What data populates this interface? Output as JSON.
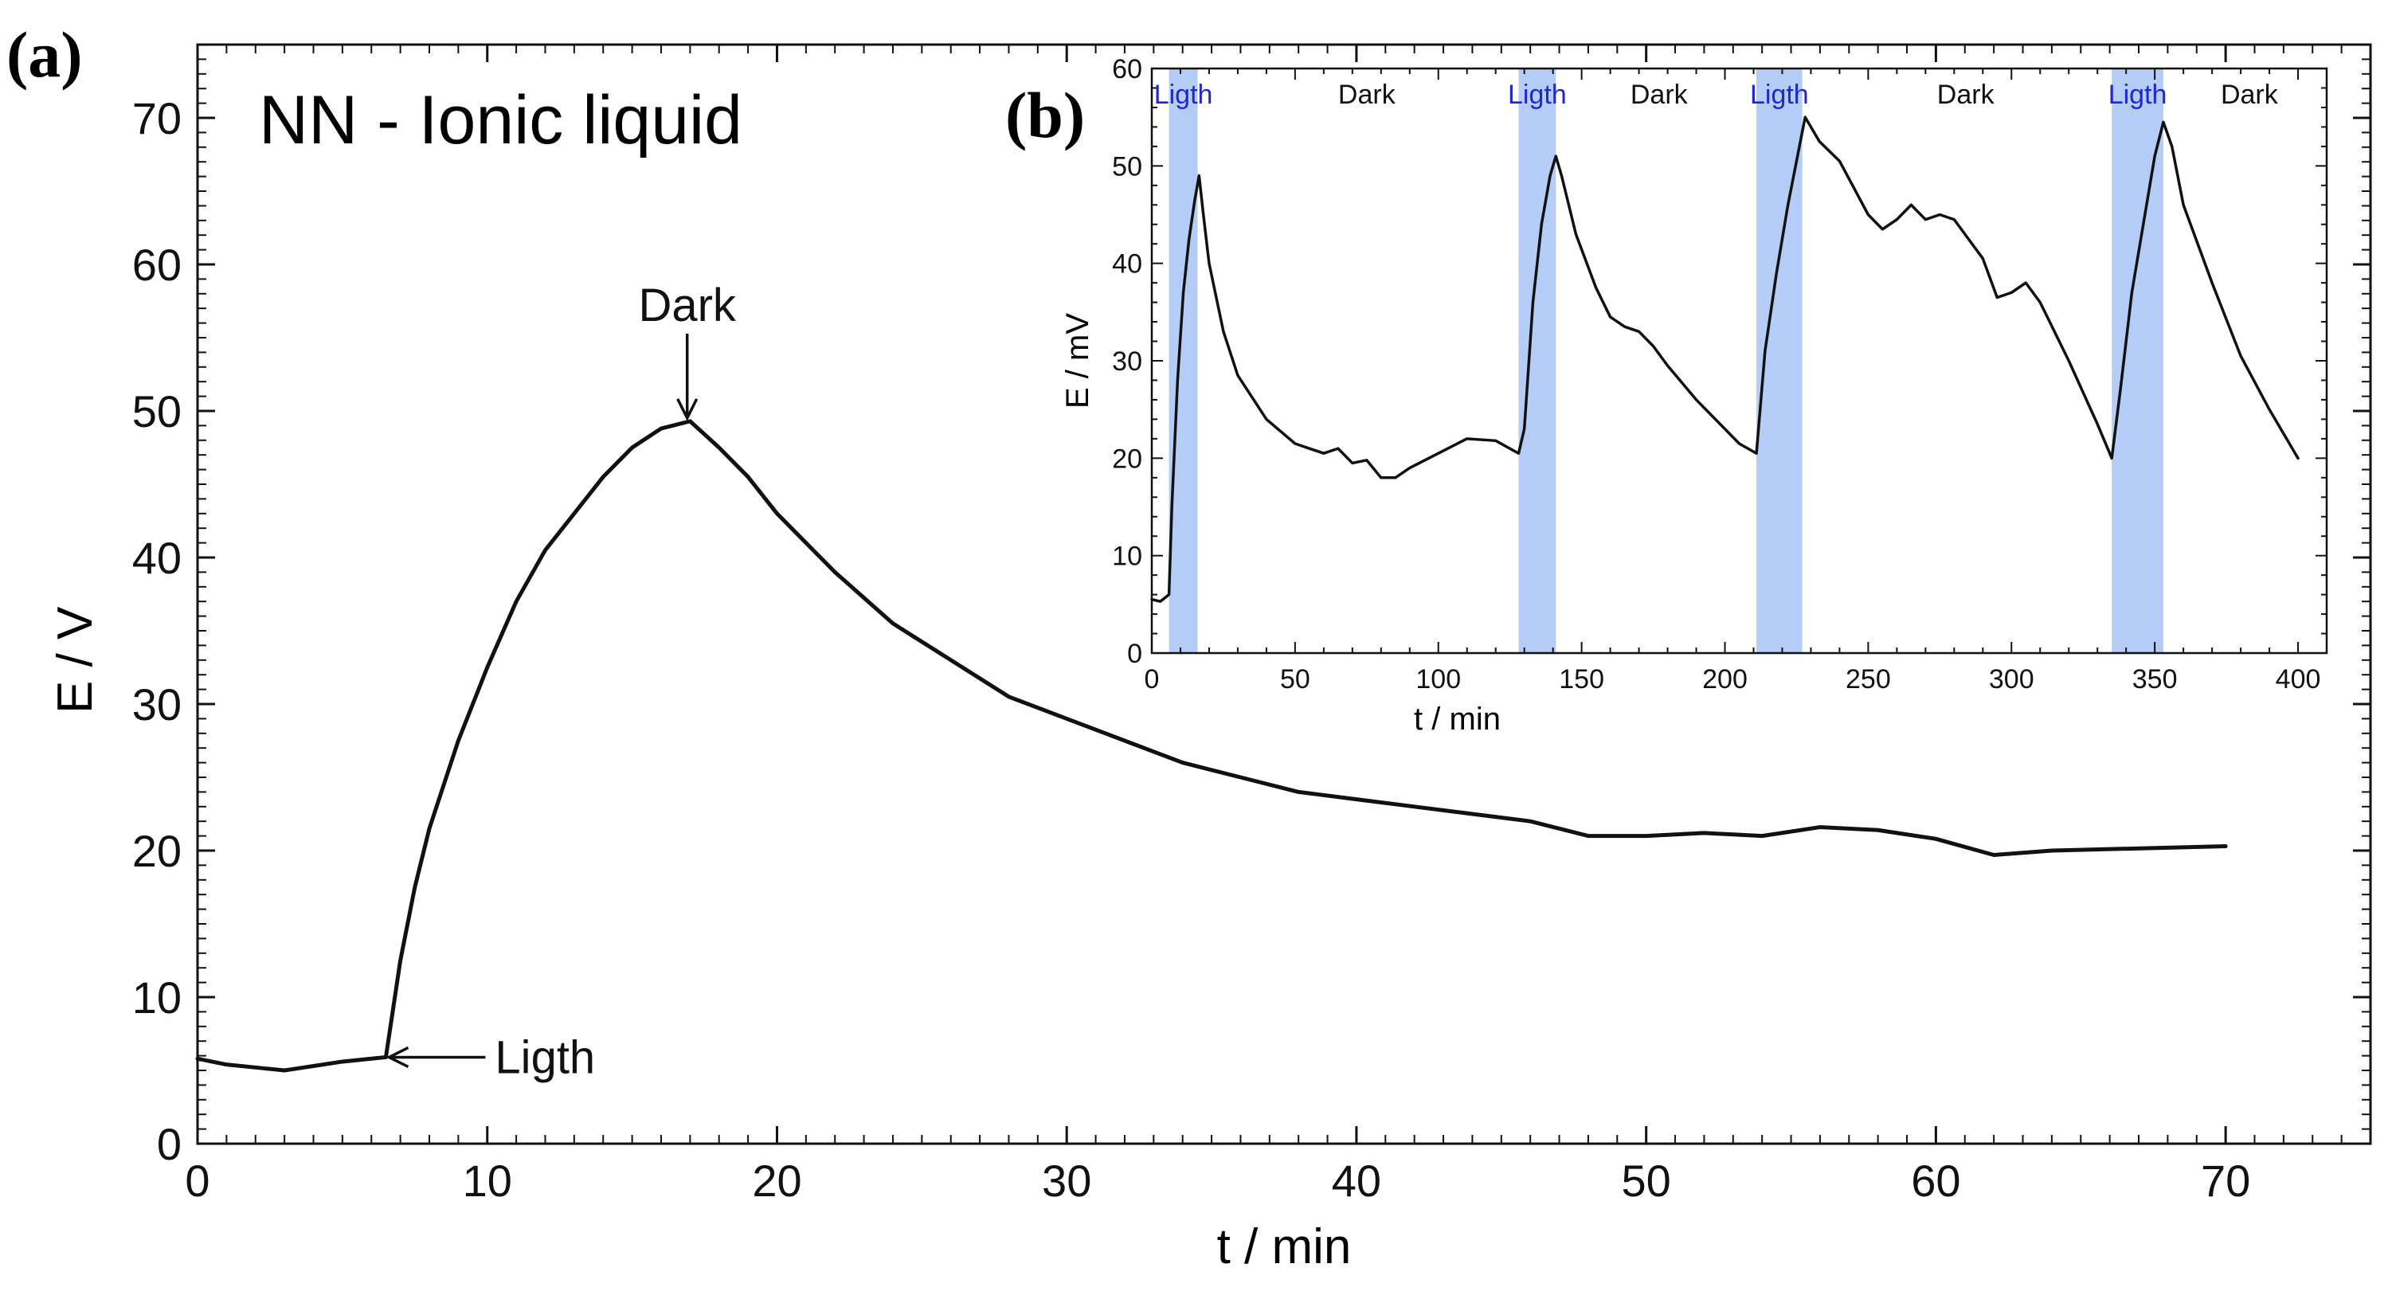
{
  "chart_data": [
    {
      "panel": "(a)",
      "type": "line",
      "title": "NN - Ionic liquid",
      "xlabel": "t / min",
      "ylabel": "E / V",
      "xlim": [
        0,
        75
      ],
      "ylim": [
        0,
        75
      ],
      "x_ticks": [
        0,
        10,
        20,
        30,
        40,
        50,
        60,
        70
      ],
      "y_ticks": [
        0,
        10,
        20,
        30,
        40,
        50,
        60,
        70
      ],
      "grid": false,
      "annotations": [
        {
          "text": "Dark",
          "x": 16.9,
          "y": 49.3,
          "arrow": "down"
        },
        {
          "text": "Ligth",
          "x": 6.5,
          "y": 5.9,
          "arrow": "left"
        }
      ],
      "series": [
        {
          "name": "E",
          "x": [
            0,
            1,
            2,
            3,
            4,
            5,
            6,
            6.5,
            7,
            7.5,
            8,
            9,
            10,
            11,
            12,
            13,
            14,
            15,
            16,
            17,
            18,
            19,
            20,
            22,
            24,
            26,
            28,
            30,
            32,
            34,
            36,
            38,
            40,
            42,
            44,
            46,
            48,
            50,
            52,
            54,
            56,
            58,
            60,
            62,
            64,
            66,
            68,
            70
          ],
          "values": [
            5.8,
            5.4,
            5.2,
            5.0,
            5.3,
            5.6,
            5.8,
            5.9,
            12.5,
            17.5,
            21.5,
            27.5,
            32.5,
            37.0,
            40.5,
            43.0,
            45.5,
            47.5,
            48.8,
            49.3,
            47.5,
            45.5,
            43.0,
            39.0,
            35.5,
            33.0,
            30.5,
            29.0,
            27.5,
            26.0,
            25.0,
            24.0,
            23.5,
            23.0,
            22.5,
            22.0,
            21.0,
            21.0,
            21.2,
            21.0,
            21.6,
            21.4,
            20.8,
            19.7,
            20.0,
            20.1,
            20.2,
            20.3
          ]
        }
      ]
    },
    {
      "panel": "(b)",
      "type": "line",
      "title": "",
      "xlabel": "t / min",
      "ylabel": "E / mV",
      "xlim": [
        0,
        410
      ],
      "ylim": [
        0,
        60
      ],
      "x_ticks": [
        0,
        50,
        100,
        150,
        200,
        250,
        300,
        350,
        400
      ],
      "y_ticks": [
        0,
        10,
        20,
        30,
        40,
        50,
        60
      ],
      "grid": false,
      "shaded_regions": [
        {
          "label": "Ligth",
          "x0": 6,
          "x1": 16
        },
        {
          "label": "Ligth",
          "x0": 128,
          "x1": 141
        },
        {
          "label": "Ligth",
          "x0": 211,
          "x1": 227
        },
        {
          "label": "Ligth",
          "x0": 335,
          "x1": 353
        }
      ],
      "dark_labels": [
        {
          "label": "Dark",
          "x": 75
        },
        {
          "label": "Dark",
          "x": 177
        },
        {
          "label": "Dark",
          "x": 284
        },
        {
          "label": "Dark",
          "x": 383
        }
      ],
      "series": [
        {
          "name": "E",
          "x": [
            0,
            3,
            6,
            7,
            9,
            11,
            13,
            15,
            16.5,
            18,
            20,
            25,
            30,
            40,
            50,
            60,
            65,
            70,
            75,
            80,
            85,
            90,
            100,
            110,
            120,
            128,
            130,
            133,
            136,
            139,
            141,
            143,
            148,
            155,
            160,
            165,
            170,
            175,
            180,
            190,
            200,
            205,
            211,
            214,
            218,
            222,
            226,
            228,
            233,
            240,
            250,
            255,
            260,
            265,
            270,
            275,
            280,
            290,
            295,
            300,
            305,
            310,
            320,
            330,
            335,
            338,
            342,
            346,
            350,
            353,
            356,
            360,
            370,
            380,
            390,
            400
          ],
          "values": [
            5.5,
            5.3,
            6.0,
            15.0,
            28.0,
            37.0,
            42.5,
            46.5,
            49.0,
            45.0,
            40.0,
            33.0,
            28.5,
            24.0,
            21.5,
            20.5,
            21.0,
            19.5,
            19.8,
            18.0,
            18.0,
            19.0,
            20.5,
            22.0,
            21.8,
            20.5,
            23.0,
            36.0,
            44.0,
            49.0,
            51.0,
            49.0,
            43.0,
            37.5,
            34.5,
            33.5,
            33.0,
            31.5,
            29.5,
            26.0,
            23.0,
            21.5,
            20.5,
            31.0,
            39.0,
            46.0,
            52.0,
            55.0,
            52.5,
            50.5,
            45.0,
            43.5,
            44.5,
            46.0,
            44.5,
            45.0,
            44.5,
            40.5,
            36.5,
            37.0,
            38.0,
            36.0,
            30.0,
            23.5,
            20.0,
            27.0,
            37.0,
            44.0,
            51.0,
            54.5,
            52.0,
            46.0,
            38.0,
            30.5,
            25.0,
            20.0
          ]
        }
      ]
    }
  ],
  "labels": {
    "panel_a": "(a)",
    "panel_b": "(b)"
  },
  "colors": {
    "line": "#111111",
    "frame": "#111111",
    "light_band": "#b5cdf6",
    "light_label": "#1f27cf",
    "text": "#111111"
  }
}
